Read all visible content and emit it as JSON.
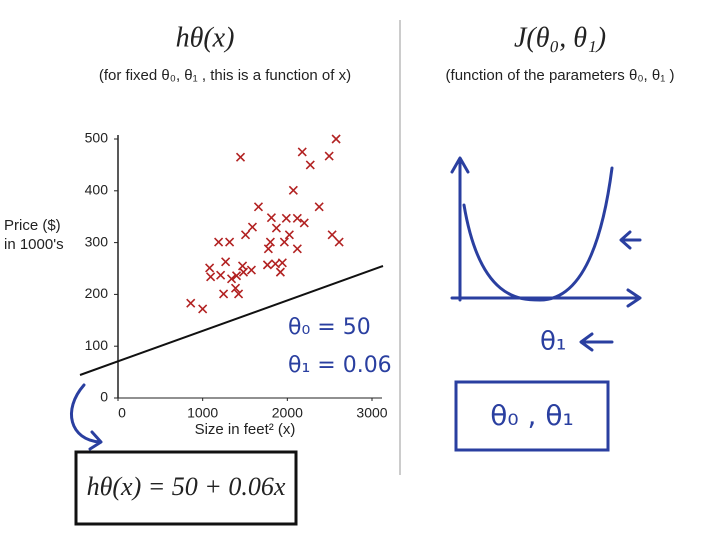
{
  "chart_data": {
    "type": "scatter",
    "title": "hθ(x)",
    "subtitle": "(for fixed θ₀, θ₁ , this is a function of x)",
    "x_label": "Size in feet² (x)",
    "y_label": [
      "Price ($)",
      "in 1000's"
    ],
    "x": [
      2576,
      2176,
      2494,
      1447,
      2271,
      2071,
      1659,
      2376,
      1812,
      1988,
      2118,
      1588,
      1871,
      2200,
      1506,
      2024,
      1188,
      1318,
      2529,
      2612,
      1800,
      1965,
      2118,
      1776,
      1082,
      1271,
      1471,
      1576,
      1765,
      1941,
      1859,
      1212,
      1094,
      1400,
      1482,
      1341,
      1918,
      1388,
      1247,
      1424,
      859,
      1000
    ],
    "values": [
      500,
      475,
      467,
      465,
      450,
      401,
      369,
      369,
      348,
      347,
      347,
      330,
      328,
      338,
      315,
      315,
      301,
      301,
      315,
      301,
      301,
      301,
      288,
      288,
      251,
      263,
      255,
      247,
      257,
      261,
      259,
      237,
      234,
      236,
      243,
      230,
      243,
      212,
      201,
      201,
      183,
      172
    ],
    "color": "#b22222",
    "xlim": [
      0,
      3000
    ],
    "xticks": [
      0,
      1000,
      2000,
      3000
    ],
    "ylim": [
      0,
      500
    ],
    "yticks": [
      0,
      100,
      200,
      300,
      400,
      500
    ],
    "grid": false,
    "annotations": [
      "θ₀ = 50",
      "θ₁ = 0.06",
      "hθ(x) = 50 + 0.06x"
    ]
  },
  "cost_panel": {
    "title": "J(θ₀, θ₁)",
    "subtitle": "(function of the parameters θ₀, θ₁ )",
    "x_label": "θ₁",
    "box_label": "θ₀ , θ₁"
  }
}
